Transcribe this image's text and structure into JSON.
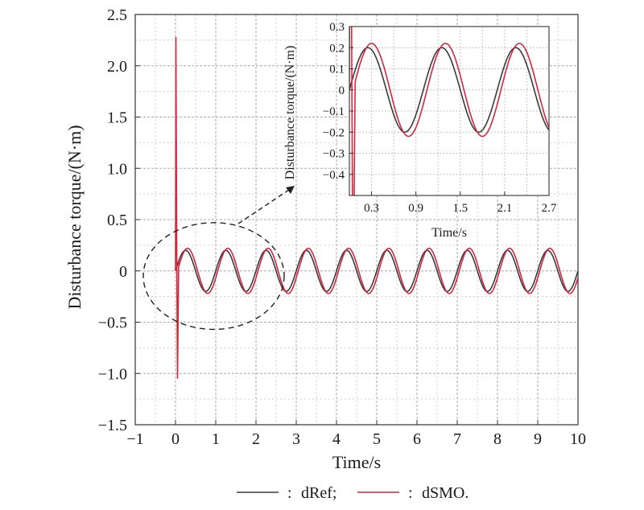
{
  "chart_data": [
    {
      "type": "line",
      "title": "",
      "xlabel": "Time/s",
      "ylabel": "Disturbance torque/(N·m)",
      "xlim": [
        -1,
        10
      ],
      "ylim": [
        -1.5,
        2.5
      ],
      "xticks": [
        "−1",
        "0",
        "1",
        "2",
        "3",
        "4",
        "5",
        "6",
        "7",
        "8",
        "9",
        "10"
      ],
      "yticks": [
        "−1.5",
        "−1.0",
        "−0.5",
        "0",
        "0.5",
        "1.0",
        "1.5",
        "2.0",
        "2.5"
      ],
      "grid": true,
      "series": [
        {
          "name": "dRef",
          "color": "#3a3a3a",
          "description": "sinusoid amplitude 0.2, period 1.0 s, starting at t = 0",
          "x": [
            0,
            0.25,
            0.5,
            0.75,
            1.0,
            1.25,
            1.5,
            1.75,
            2.0,
            2.25,
            2.5,
            2.75,
            3.0,
            3.25,
            3.5,
            3.75,
            4.0,
            4.25,
            4.5,
            4.75,
            5.0,
            5.25,
            5.5,
            5.75,
            6.0,
            6.25,
            6.5,
            6.75,
            7.0,
            7.25,
            7.5,
            7.75,
            8.0,
            8.25,
            8.5,
            8.75,
            9.0,
            9.25,
            9.5,
            9.75,
            10.0
          ],
          "y": [
            0,
            0.2,
            0,
            -0.2,
            0,
            0.2,
            0,
            -0.2,
            0,
            0.2,
            0,
            -0.2,
            0,
            0.2,
            0,
            -0.2,
            0,
            0.2,
            0,
            -0.2,
            0,
            0.2,
            0,
            -0.2,
            0,
            0.2,
            0,
            -0.2,
            0,
            0.2,
            0,
            -0.2,
            0,
            0.2,
            0,
            -0.2,
            0,
            0.2,
            0,
            -0.2,
            0
          ]
        },
        {
          "name": "dSMO",
          "color": "#d1273f",
          "description": "estimate with startup spike (max about 2.28 near t = 0, min about -1.05 near t = 0.05), then sinusoid amplitude 0.22 slightly lagging dRef",
          "x": [
            0,
            0.01,
            0.03,
            0.05,
            0.08,
            0.3,
            0.55,
            0.8,
            1.05,
            1.3,
            1.55,
            1.8,
            2.05,
            2.3,
            2.55,
            2.8,
            3.05,
            3.3,
            3.55,
            3.8,
            4.05,
            4.3,
            4.55,
            4.8,
            5.05,
            5.3,
            5.55,
            5.8,
            6.05,
            6.3,
            6.55,
            6.8,
            7.05,
            7.3,
            7.55,
            7.8,
            8.05,
            8.3,
            8.55,
            8.8,
            9.05,
            9.3,
            9.55,
            9.8,
            10.0
          ],
          "y": [
            0,
            2.28,
            0.3,
            -1.05,
            0.1,
            0.22,
            0,
            -0.22,
            0,
            0.22,
            0,
            -0.22,
            0,
            0.22,
            0,
            -0.22,
            0,
            0.22,
            0,
            -0.22,
            0,
            0.22,
            0,
            -0.22,
            0,
            0.22,
            0,
            -0.22,
            0,
            0.22,
            0,
            -0.22,
            0,
            0.22,
            0,
            -0.22,
            0,
            0.22,
            0,
            -0.22,
            0,
            0.22,
            0,
            -0.22,
            -0.1
          ]
        }
      ],
      "legend": {
        "placement": "bottom-center",
        "separator_text": " : ",
        "items": [
          {
            "label": "dRef;",
            "color": "#3a3a3a"
          },
          {
            "label": "dSMO.",
            "color": "#d1273f"
          }
        ]
      },
      "annotation": {
        "type": "dashed-ellipse",
        "center_data": [
          0.95,
          -0.05
        ],
        "radius_data": [
          1.75,
          0.52
        ],
        "arrow_to": "inset"
      }
    },
    {
      "type": "line",
      "title": "",
      "xlabel": "Time/s",
      "ylabel": "Disturbance torque/(N·m)",
      "xlim": [
        0.0,
        2.7
      ],
      "ylim": [
        -0.5,
        0.3
      ],
      "xticks": [
        "0.3",
        "0.9",
        "1.5",
        "2.1",
        "2.7"
      ],
      "yticks": [
        "0.3",
        "0.2",
        "0.1",
        "0",
        "−0.1",
        "−0.2",
        "−0.3",
        "−0.4"
      ],
      "grid": true,
      "placement": "inset-top-right",
      "series": [
        {
          "name": "dRef",
          "color": "#3a3a3a"
        },
        {
          "name": "dSMO",
          "color": "#d1273f"
        }
      ]
    }
  ]
}
